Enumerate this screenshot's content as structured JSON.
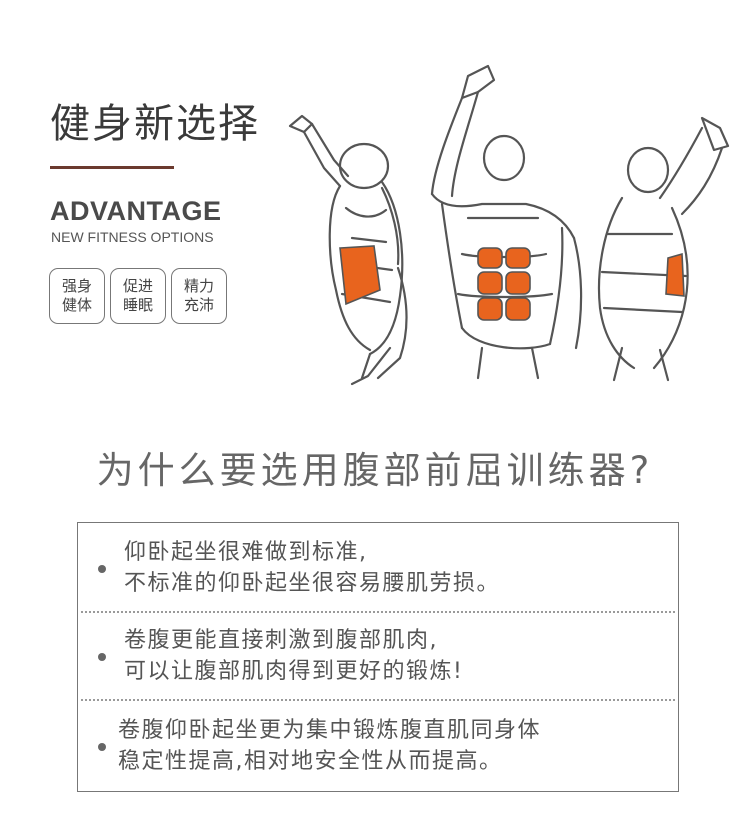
{
  "header": {
    "title": "健身新选择",
    "advantage": "ADVANTAGE",
    "subtitle": "NEW FITNESS OPTIONS"
  },
  "badges": [
    {
      "line1": "强身",
      "line2": "健体"
    },
    {
      "line1": "促进",
      "line2": "睡眠"
    },
    {
      "line1": "精力",
      "line2": "充沛"
    }
  ],
  "colors": {
    "accent_rule": "#6b3a2e",
    "muscle_highlight": "#e8641e"
  },
  "question": "为什么要选用腹部前屈训练器?",
  "points": [
    {
      "line1": "仰卧起坐很难做到标准,",
      "line2": "不标准的仰卧起坐很容易腰肌劳损。"
    },
    {
      "line1": "卷腹更能直接刺激到腹部肌肉,",
      "line2": "可以让腹部肌肉得到更好的锻炼!"
    },
    {
      "line1": "卷腹仰卧起坐更为集中锻炼腹直肌同身体",
      "line2": "稳定性提高,相对地安全性从而提高。"
    }
  ]
}
